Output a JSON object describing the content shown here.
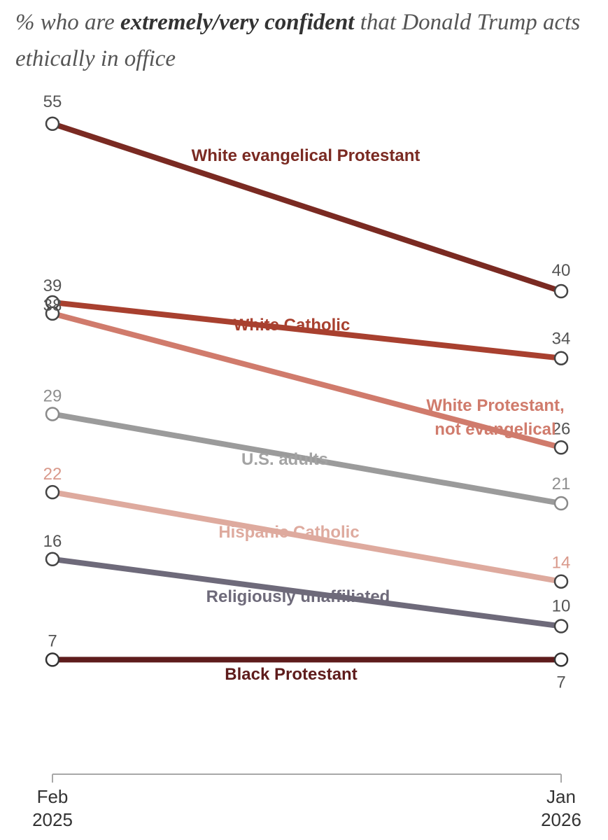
{
  "title": {
    "prefix": "% who are ",
    "emphasis": "extremely/very confident",
    "suffix": " that Donald Trump acts ethically in office"
  },
  "chart_data": {
    "type": "line",
    "x": [
      "Feb 2025",
      "Jan 2026"
    ],
    "xticks": [
      {
        "line1": "Feb",
        "line2": "2025"
      },
      {
        "line1": "Jan",
        "line2": "2026"
      }
    ],
    "series": [
      {
        "name": "White evangelical Protestant",
        "values": [
          55,
          40
        ],
        "color": "#7a2a22"
      },
      {
        "name": "White Catholic",
        "values": [
          39,
          34
        ],
        "color": "#a8402f"
      },
      {
        "name": "White Protestant, not evangelical",
        "values": [
          38,
          26
        ],
        "color": "#d07b6c"
      },
      {
        "name": "U.S. adults",
        "values": [
          29,
          21
        ],
        "color": "#9b9b9b"
      },
      {
        "name": "Hispanic Catholic",
        "values": [
          22,
          14
        ],
        "color": "#deaa9e"
      },
      {
        "name": "Religiously unaffiliated",
        "values": [
          16,
          10
        ],
        "color": "#6e6a7a"
      },
      {
        "name": "Black Protestant",
        "values": [
          7,
          7
        ],
        "color": "#5e1c1c"
      }
    ],
    "grid": false,
    "legend": "inline labels on lines"
  }
}
